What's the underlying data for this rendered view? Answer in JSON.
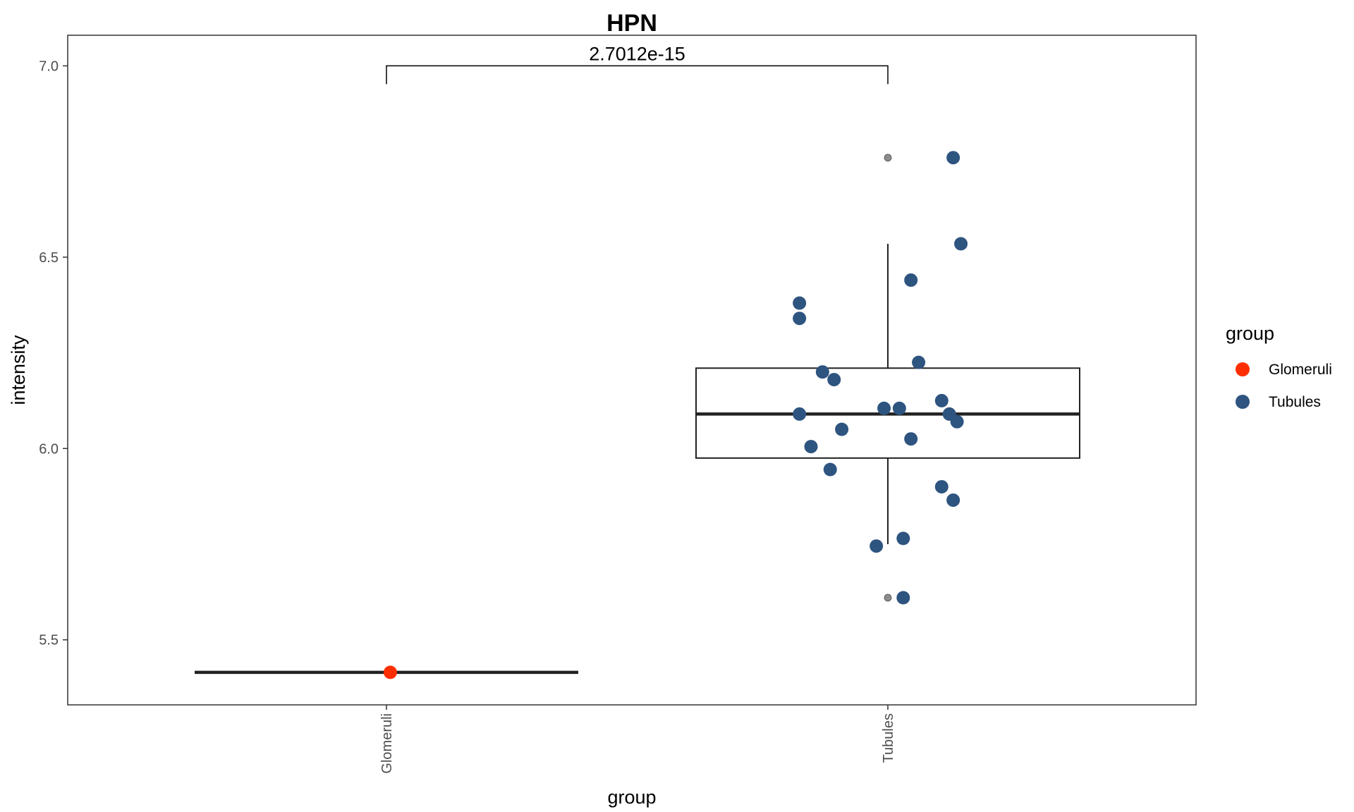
{
  "chart_data": {
    "type": "box",
    "title": "HPN",
    "xlabel": "group",
    "ylabel": "intensity",
    "categories": [
      "Glomeruli",
      "Tubules"
    ],
    "ylim": [
      5.33,
      7.08
    ],
    "yticks": [
      5.5,
      6.0,
      6.5,
      7.0
    ],
    "ytick_labels": [
      "5.5",
      "6.0",
      "6.5",
      "7.0"
    ],
    "grid": false,
    "legend": {
      "title": "group",
      "position": "right",
      "entries": [
        {
          "label": "Glomeruli",
          "color": "#FF2E00"
        },
        {
          "label": "Tubules",
          "color": "#2E5480"
        }
      ]
    },
    "significance": {
      "label": "2.7012e-15",
      "from": "Glomeruli",
      "to": "Tubules",
      "y": 7.0
    },
    "boxes": [
      {
        "group": "Glomeruli",
        "min": 5.415,
        "q1": 5.415,
        "median": 5.415,
        "q3": 5.415,
        "max": 5.415,
        "outliers": []
      },
      {
        "group": "Tubules",
        "min": 5.75,
        "q1": 5.975,
        "median": 6.09,
        "q3": 6.21,
        "max": 6.535,
        "outliers": [
          6.76,
          5.61
        ]
      }
    ],
    "points": [
      {
        "group": "Glomeruli",
        "dx": 0.01,
        "y": 5.415
      },
      {
        "group": "Tubules",
        "dx": 0.17,
        "y": 6.76
      },
      {
        "group": "Tubules",
        "dx": 0.19,
        "y": 6.535
      },
      {
        "group": "Tubules",
        "dx": 0.06,
        "y": 6.44
      },
      {
        "group": "Tubules",
        "dx": -0.23,
        "y": 6.38
      },
      {
        "group": "Tubules",
        "dx": -0.23,
        "y": 6.34
      },
      {
        "group": "Tubules",
        "dx": 0.08,
        "y": 6.225
      },
      {
        "group": "Tubules",
        "dx": -0.17,
        "y": 6.2
      },
      {
        "group": "Tubules",
        "dx": -0.14,
        "y": 6.18
      },
      {
        "group": "Tubules",
        "dx": 0.14,
        "y": 6.125
      },
      {
        "group": "Tubules",
        "dx": -0.01,
        "y": 6.105
      },
      {
        "group": "Tubules",
        "dx": 0.03,
        "y": 6.105
      },
      {
        "group": "Tubules",
        "dx": 0.16,
        "y": 6.09
      },
      {
        "group": "Tubules",
        "dx": -0.23,
        "y": 6.09
      },
      {
        "group": "Tubules",
        "dx": 0.18,
        "y": 6.07
      },
      {
        "group": "Tubules",
        "dx": -0.12,
        "y": 6.05
      },
      {
        "group": "Tubules",
        "dx": 0.06,
        "y": 6.025
      },
      {
        "group": "Tubules",
        "dx": -0.2,
        "y": 6.005
      },
      {
        "group": "Tubules",
        "dx": -0.15,
        "y": 5.945
      },
      {
        "group": "Tubules",
        "dx": 0.14,
        "y": 5.9
      },
      {
        "group": "Tubules",
        "dx": 0.17,
        "y": 5.865
      },
      {
        "group": "Tubules",
        "dx": 0.04,
        "y": 5.765
      },
      {
        "group": "Tubules",
        "dx": -0.03,
        "y": 5.745
      },
      {
        "group": "Tubules",
        "dx": 0.04,
        "y": 5.61
      }
    ]
  }
}
